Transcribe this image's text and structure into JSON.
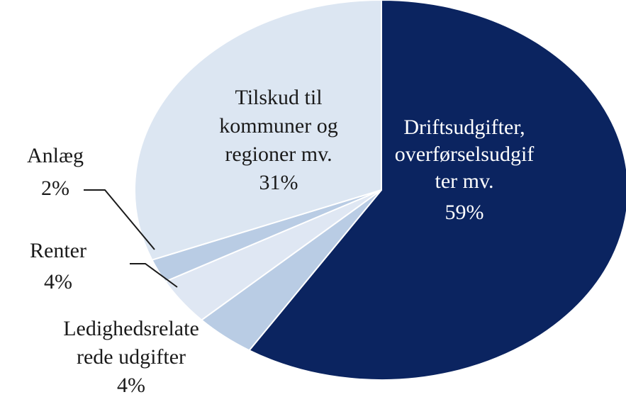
{
  "chart_data": {
    "type": "pie",
    "categories": [
      [
        "Driftsudgifter,",
        "overførselsudgif",
        "ter mv."
      ],
      [
        "Ledighedsrelate",
        "rede udgifter"
      ],
      [
        "Renter"
      ],
      [
        "Anlæg"
      ],
      [
        "Tilskud til",
        "kommuner  og",
        "regioner mv."
      ]
    ],
    "values": [
      59,
      4,
      4,
      2,
      31
    ],
    "value_labels": [
      "59%",
      "4%",
      "4%",
      "2%",
      "31%"
    ],
    "colors": [
      "#0b2460",
      "#b9cce4",
      "#dfe7f3",
      "#b9cce4",
      "#dce6f2"
    ],
    "label_colors": [
      "#ffffff",
      "#1a1a1a",
      "#1a1a1a",
      "#1a1a1a",
      "#1a1a1a"
    ]
  }
}
